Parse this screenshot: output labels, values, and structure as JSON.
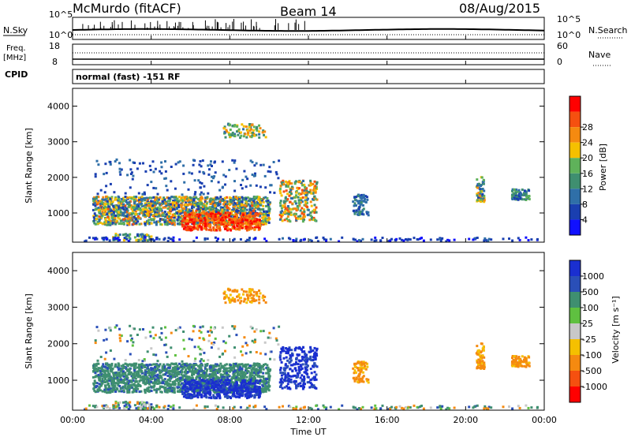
{
  "header": {
    "title": "McMurdo (fitACF)",
    "beam": "Beam 14",
    "date": "08/Aug/2015"
  },
  "top_panel": {
    "left_label": "N.Sky",
    "right_label": "N.Search",
    "left_ticks": [
      "10^5",
      "10^0"
    ],
    "right_ticks": [
      "10^5",
      "10^0"
    ]
  },
  "freq_panel": {
    "left_label_1": "Freq.",
    "left_label_2": "[MHz]",
    "cpid_label": "CPID",
    "right_label": "Nave",
    "left_ticks": [
      "18",
      "8"
    ],
    "right_ticks": [
      "60",
      "0"
    ]
  },
  "cpid_text": "normal (fast) -151 RF",
  "chart_data": [
    {
      "type": "heatmap",
      "quantity": "Power",
      "ylabel": "Slant Range [km]",
      "ylim": [
        180,
        4500
      ],
      "yticks": [
        "1000",
        "2000",
        "3000",
        "4000"
      ],
      "colorbar": {
        "label": "Power [dB]",
        "ticks": [
          "4",
          "8",
          "12",
          "16",
          "20",
          "24",
          "28"
        ],
        "range": [
          0,
          32
        ],
        "colors": [
          "#1010ff",
          "#1a3fb0",
          "#2f6fa8",
          "#3f8f70",
          "#5fb25a",
          "#f5c000",
          "#f58a10",
          "#f55010",
          "#ff0000"
        ]
      }
    },
    {
      "type": "heatmap",
      "quantity": "Velocity",
      "xlabel": "Time UT",
      "ylabel": "Slant Range [km]",
      "xlim_hours": [
        0,
        24
      ],
      "xticks": [
        "00:00",
        "04:00",
        "08:00",
        "12:00",
        "16:00",
        "20:00",
        "00:00"
      ],
      "ylim": [
        180,
        4500
      ],
      "yticks": [
        "1000",
        "2000",
        "3000",
        "4000"
      ],
      "colorbar": {
        "label": "Velocity [m s⁻¹]",
        "ticks": [
          "1000",
          "500",
          "100",
          "25",
          "-25",
          "-100",
          "-500",
          "-1000"
        ],
        "colors": [
          "#1a2fd0",
          "#2a4fb8",
          "#3f8f70",
          "#5fc040",
          "#c8c8c8",
          "#f5c000",
          "#f58a10",
          "#f55010",
          "#ff0000"
        ]
      }
    }
  ]
}
